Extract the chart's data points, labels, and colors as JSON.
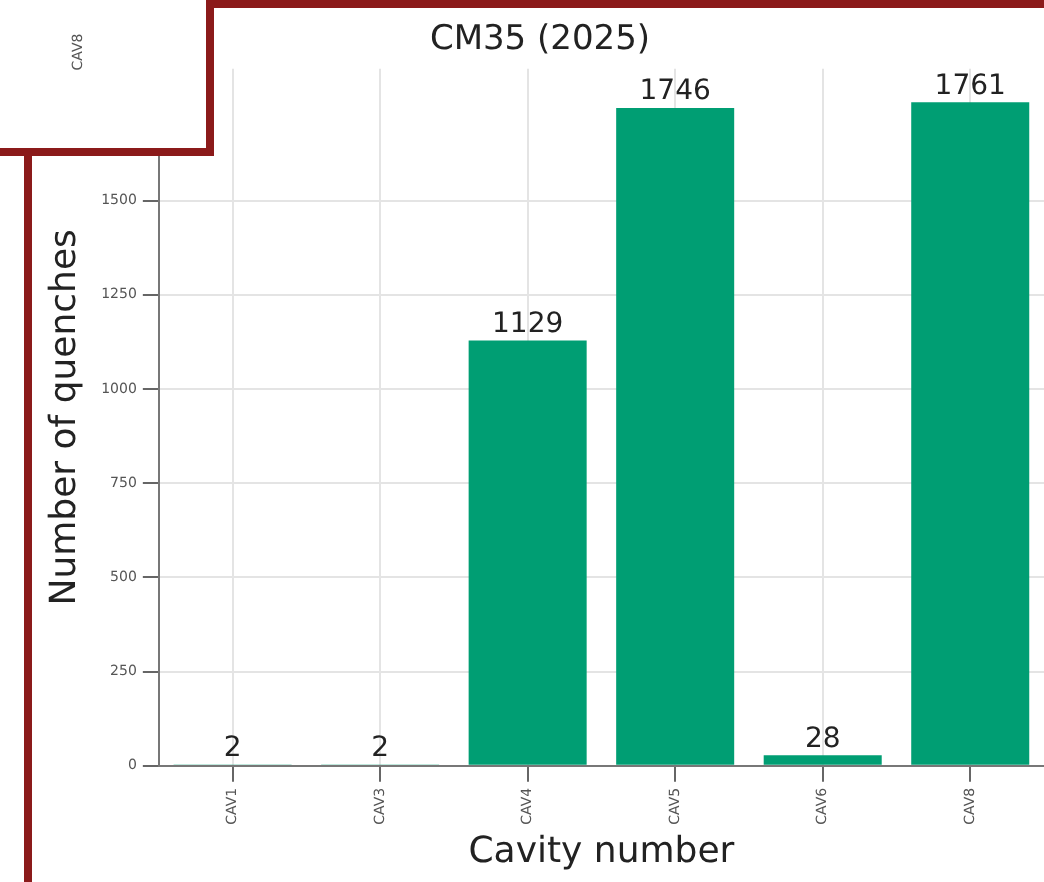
{
  "chart_data": {
    "type": "bar",
    "title": "CM35 (2025)",
    "xlabel": "Cavity number",
    "ylabel": "Number of quenches",
    "categories": [
      "CAV1",
      "CAV3",
      "CAV4",
      "CAV5",
      "CAV6",
      "CAV8"
    ],
    "values": [
      2,
      2,
      1129,
      1746,
      28,
      1761
    ],
    "color": "#009e73",
    "ylim": [
      0,
      1850
    ],
    "yticks": [
      0,
      250,
      500,
      750,
      1000,
      1250,
      1500
    ],
    "grid": true,
    "data_labels": true,
    "legend": false,
    "annotations": [
      "CAV8"
    ]
  }
}
